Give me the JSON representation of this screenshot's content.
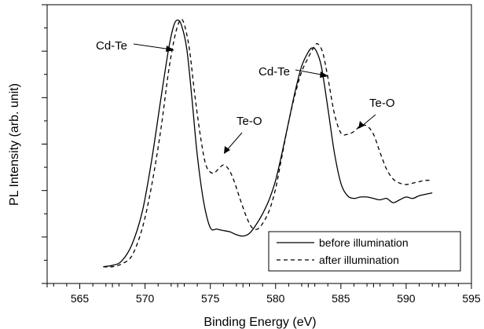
{
  "chart_data": {
    "type": "line",
    "title": "",
    "xlabel": "Binding Energy (eV)",
    "ylabel": "PL Intensity (arb. unit)",
    "xlim": [
      562.5,
      595
    ],
    "ylim": [
      0,
      1
    ],
    "x_ticks": [
      565,
      570,
      575,
      580,
      585,
      590,
      595
    ],
    "y_tick_count": 13,
    "show_y_tick_labels": false,
    "grid": false,
    "legend_position": "bottom-right",
    "series": [
      {
        "name": "before illumination",
        "style": "solid",
        "color": "#000000",
        "points": [
          [
            566.8,
            0.06
          ],
          [
            567.5,
            0.065
          ],
          [
            568.2,
            0.08
          ],
          [
            569.0,
            0.14
          ],
          [
            569.8,
            0.26
          ],
          [
            570.5,
            0.44
          ],
          [
            571.2,
            0.66
          ],
          [
            571.8,
            0.84
          ],
          [
            572.2,
            0.925
          ],
          [
            572.5,
            0.945
          ],
          [
            572.8,
            0.925
          ],
          [
            573.2,
            0.84
          ],
          [
            573.6,
            0.66
          ],
          [
            574.0,
            0.46
          ],
          [
            574.5,
            0.29
          ],
          [
            575.0,
            0.2
          ],
          [
            575.5,
            0.195
          ],
          [
            576.0,
            0.19
          ],
          [
            576.5,
            0.185
          ],
          [
            577.0,
            0.175
          ],
          [
            577.5,
            0.17
          ],
          [
            578.0,
            0.18
          ],
          [
            578.5,
            0.21
          ],
          [
            579.0,
            0.25
          ],
          [
            579.5,
            0.3
          ],
          [
            580.0,
            0.37
          ],
          [
            580.5,
            0.47
          ],
          [
            581.0,
            0.58
          ],
          [
            581.5,
            0.69
          ],
          [
            582.0,
            0.78
          ],
          [
            582.5,
            0.83
          ],
          [
            582.8,
            0.845
          ],
          [
            583.1,
            0.835
          ],
          [
            583.5,
            0.78
          ],
          [
            584.0,
            0.63
          ],
          [
            584.5,
            0.47
          ],
          [
            585.0,
            0.36
          ],
          [
            585.5,
            0.315
          ],
          [
            586.0,
            0.305
          ],
          [
            586.5,
            0.31
          ],
          [
            587.0,
            0.31
          ],
          [
            587.5,
            0.305
          ],
          [
            588.0,
            0.3
          ],
          [
            588.5,
            0.305
          ],
          [
            589.0,
            0.29
          ],
          [
            589.5,
            0.3
          ],
          [
            590.0,
            0.31
          ],
          [
            590.5,
            0.305
          ],
          [
            591.0,
            0.315
          ],
          [
            591.5,
            0.32
          ],
          [
            592.0,
            0.325
          ]
        ]
      },
      {
        "name": "after illumination",
        "style": "dashed",
        "color": "#000000",
        "points": [
          [
            566.8,
            0.06
          ],
          [
            567.5,
            0.06
          ],
          [
            568.2,
            0.07
          ],
          [
            569.0,
            0.1
          ],
          [
            569.8,
            0.2
          ],
          [
            570.5,
            0.35
          ],
          [
            571.2,
            0.55
          ],
          [
            571.8,
            0.76
          ],
          [
            572.3,
            0.89
          ],
          [
            572.7,
            0.945
          ],
          [
            573.0,
            0.93
          ],
          [
            573.4,
            0.84
          ],
          [
            573.8,
            0.68
          ],
          [
            574.3,
            0.51
          ],
          [
            574.7,
            0.42
          ],
          [
            575.2,
            0.395
          ],
          [
            575.6,
            0.41
          ],
          [
            576.0,
            0.425
          ],
          [
            576.4,
            0.41
          ],
          [
            576.8,
            0.37
          ],
          [
            577.3,
            0.3
          ],
          [
            577.8,
            0.235
          ],
          [
            578.2,
            0.2
          ],
          [
            578.6,
            0.195
          ],
          [
            579.0,
            0.215
          ],
          [
            579.5,
            0.26
          ],
          [
            580.0,
            0.34
          ],
          [
            580.5,
            0.46
          ],
          [
            581.0,
            0.58
          ],
          [
            581.5,
            0.68
          ],
          [
            582.0,
            0.76
          ],
          [
            582.5,
            0.81
          ],
          [
            582.9,
            0.845
          ],
          [
            583.2,
            0.86
          ],
          [
            583.6,
            0.83
          ],
          [
            584.0,
            0.74
          ],
          [
            584.5,
            0.61
          ],
          [
            585.0,
            0.54
          ],
          [
            585.5,
            0.535
          ],
          [
            586.0,
            0.545
          ],
          [
            586.5,
            0.565
          ],
          [
            587.0,
            0.565
          ],
          [
            587.5,
            0.535
          ],
          [
            588.0,
            0.47
          ],
          [
            588.5,
            0.41
          ],
          [
            589.0,
            0.375
          ],
          [
            589.5,
            0.36
          ],
          [
            590.0,
            0.355
          ],
          [
            590.5,
            0.36
          ],
          [
            591.0,
            0.365
          ],
          [
            591.5,
            0.37
          ],
          [
            592.0,
            0.37
          ]
        ]
      }
    ],
    "annotations": [
      {
        "text": "Cd-Te",
        "x": 572.3,
        "y": 0.925
      },
      {
        "text": "Te-O",
        "x": 575.9,
        "y": 0.44
      },
      {
        "text": "Cd-Te",
        "x": 582.7,
        "y": 0.84
      },
      {
        "text": "Te-O",
        "x": 586.7,
        "y": 0.58
      }
    ]
  }
}
